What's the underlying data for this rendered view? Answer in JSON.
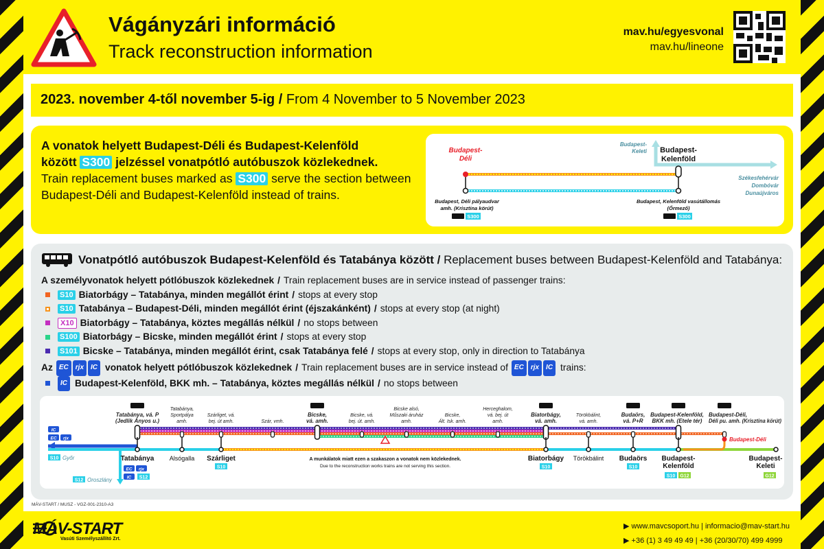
{
  "header": {
    "title": "Vágányzári információ",
    "subtitle": "Track reconstruction information",
    "link_hu": "mav.hu/egyesvonal",
    "link_en": "mav.hu/lineone",
    "warning_icon": "worker-warning-triangle",
    "qr_icon": "qr-code"
  },
  "date": {
    "hu": "2023. november 4-től november 5-ig",
    "sep": " / ",
    "en": "From 4 November to 5 November 2023"
  },
  "info": {
    "hu1": "A vonatok helyett Budapest-Déli és Budapest-Kelenföld",
    "hu2a": "között ",
    "badge": "S300",
    "hu2b": " jelzéssel vonatpótló autóbuszok közlekednek.",
    "en1": "Train replacement buses marked as ",
    "en2": " serve the section between Budapest-Déli and Budapest-Kelenföld instead of trains.",
    "map": {
      "deli": [
        "Budapest-",
        "Déli"
      ],
      "keleti": [
        "Budapest-",
        "Keleti"
      ],
      "kelenfold": [
        "Budapest-",
        "Kelenföld"
      ],
      "dest": [
        "Székesfehérvár",
        "Dombóvár",
        "Dunaújváros"
      ],
      "stop_left": [
        "Budapest, Déli pályaudvar",
        "amh. (Krisztina körút)"
      ],
      "stop_right": [
        "Budapest, Kelenföld vasútállomás",
        "(Őrmező)"
      ],
      "badge": "S300"
    }
  },
  "buses": {
    "title_hu": "Vonatpótló autóbuszok Budapest-Kelenföld és Tatabánya között",
    "sep": " / ",
    "title_en": "Replacement buses between Budapest-Kelenföld and Tatabánya:",
    "intro_hu": "A személyvonatok helyett pótlóbuszok közlekednek",
    "intro_en": "Train replacement buses are in service instead of passenger trains:",
    "items": [
      {
        "color": "#f26522",
        "badge": "S10",
        "hu": "Biatorbágy – Tatabánya, minden megállót érint",
        "en": "stops at every stop"
      },
      {
        "color": "#f7941d",
        "hollow": true,
        "badge": "S10",
        "hu": "Tatabánya – Budapest-Déli, minden megállót érint (éjszakánként)",
        "en": "stops at every stop (at night)"
      },
      {
        "color": "#c42fc0",
        "badge": "X10",
        "outline": true,
        "hu": "Biatorbágy – Tatabánya, köztes megállás nélkül",
        "en": "no stops between"
      },
      {
        "color": "#2bd48a",
        "badge": "S100",
        "hu": "Biatorbágy – Bicske, minden megállót érint",
        "en": "stops at every stop"
      },
      {
        "color": "#4b2bb0",
        "badge": "S101",
        "hu": "Bicske – Tatabánya, minden megállót érint, csak Tatabánya felé",
        "en": "stops at every stop, only in direction to Tatabánya"
      }
    ],
    "ic_intro_a": "Az ",
    "ic_intro_hu": " vonatok helyett pótlóbuszok közlekednek",
    "ic_intro_en": "Train replacement buses are in service instead of ",
    "ic_intro_end": " trains:",
    "trains": [
      "EC",
      "rjx",
      "IC"
    ],
    "ic_item": {
      "color": "#1f55d6",
      "badge": "IC",
      "hu": "Budapest-Kelenföld, BKK mh. – Tatabánya, köztes megállás nélkül",
      "en": "no stops between"
    }
  },
  "route": {
    "top": [
      [
        "Tatabánya, vá. P",
        "(Jedlik Ányos u.)"
      ],
      [
        "Tatabánya,",
        "Sportpálya",
        "amh."
      ],
      [
        "Szárliget, vá.",
        "bej. út amh."
      ],
      [
        "Szár, vmh."
      ],
      [
        "Bicske,",
        "vá. amh."
      ],
      [
        "Bicske, vá.",
        "bej. út. amh."
      ],
      [
        "Bicske alsó,",
        "Műszaki áruház",
        "amh."
      ],
      [
        "Bicske,",
        "Ált. Isk. amh."
      ],
      [
        "Herceghalom,",
        "vá. bej. út",
        "amh."
      ],
      [
        "Biatorbágy,",
        "vá. amh."
      ],
      [
        "Törökbálint,",
        "vá. amh."
      ],
      [
        "Budaörs,",
        "vá. P+R"
      ],
      [
        "Budapest-Kelenföld,",
        "BKK mh. (Etele tér)"
      ],
      [
        "Budapest-Déli,",
        "Déli pu. amh. (Krisztina körút)"
      ]
    ],
    "bottom": [
      [
        "Tatabánya"
      ],
      [
        "Alsógalla"
      ],
      [
        "Szárliget"
      ],
      [
        "Biatorbágy"
      ],
      [
        "Törökbálint"
      ],
      [
        "Budaörs"
      ],
      [
        "Budapest-",
        "Kelenföld"
      ],
      [
        "Budapest-",
        "Keleti"
      ]
    ],
    "deli": "Budapest-Déli",
    "gyor": "Győr",
    "oroszlany": "Oroszlány",
    "s10": "S10",
    "s12": "S12",
    "g12": "G12",
    "warning_hu": "A munkálatok miatt ezen a szakaszon a vonatok nem közlekednek.",
    "warning_en": "Due to the reconstruction works trains are not serving this section."
  },
  "colors": {
    "yellow": "#fff200",
    "s10": "#2ad0e8",
    "g12": "#8fd63a",
    "ic": "#1f55d6",
    "deli": "#e8202a"
  },
  "footer": {
    "code": "MÁV-START / MUSZ - VGZ-001-2310-A3",
    "logo": "MÁV-START",
    "logo_sub": "Vasúti Személyszállító Zrt.",
    "web": "www.mavcsoport.hu",
    "email": "informacio@mav-start.hu",
    "phone1": "+36 (1) 3 49 49 49",
    "phone2": "+36 (20/30/70) 499 4999"
  }
}
